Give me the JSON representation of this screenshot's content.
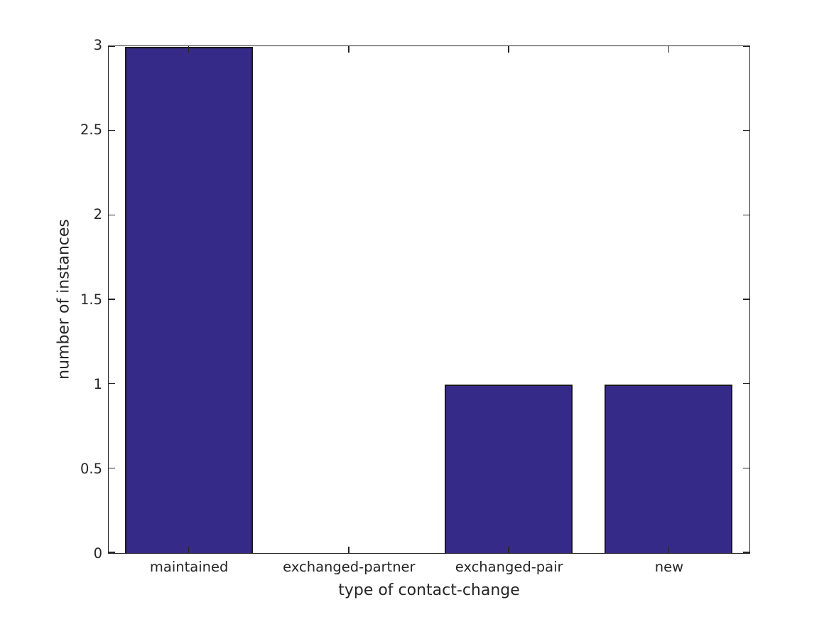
{
  "chart_data": {
    "type": "bar",
    "title": "",
    "categories": [
      "maintained",
      "exchanged-partner",
      "exchanged-pair",
      "new"
    ],
    "values": [
      3,
      0,
      1,
      1
    ],
    "xlabel": "type of contact-change",
    "ylabel": "number of instances",
    "ylim": [
      0,
      3
    ],
    "yticks": [
      0,
      0.5,
      1,
      1.5,
      2,
      2.5,
      3
    ],
    "ytick_labels": [
      "0",
      "0.5",
      "1",
      "1.5",
      "2",
      "2.5",
      "3"
    ],
    "grid": false,
    "legend": "none",
    "box": true,
    "tick_direction": "in",
    "bar_width_fraction": 0.8,
    "colors": {
      "bar_fill": "#352a87",
      "bar_edge": "#1a1a1a",
      "axis": "#262626",
      "text": "#262626",
      "background": "#ffffff"
    }
  }
}
